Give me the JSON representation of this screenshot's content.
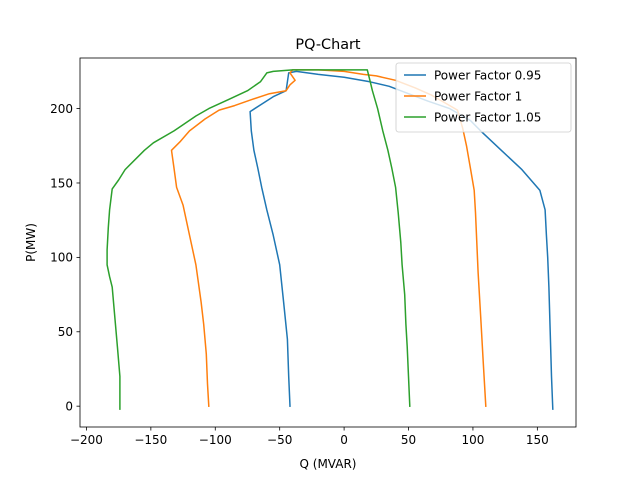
{
  "chart_data": {
    "type": "line",
    "title": "PQ-Chart",
    "xlabel": "Q (MVAR)",
    "ylabel": "P(MW)",
    "xlim": [
      -205,
      180
    ],
    "ylim": [
      -14,
      234
    ],
    "xticks": [
      -200,
      -150,
      -100,
      -50,
      0,
      50,
      100,
      150
    ],
    "yticks": [
      0,
      50,
      100,
      150,
      200
    ],
    "grid": false,
    "legend_position": "top-right",
    "series": [
      {
        "name": "Power Factor 0.95",
        "color": "#1f77b4",
        "points": [
          [
            -42,
            0
          ],
          [
            -43,
            20
          ],
          [
            -44,
            45
          ],
          [
            -47,
            70
          ],
          [
            -50,
            95
          ],
          [
            -55,
            115
          ],
          [
            -60,
            132
          ],
          [
            -64,
            147
          ],
          [
            -67,
            160
          ],
          [
            -70,
            172
          ],
          [
            -72,
            185
          ],
          [
            -73,
            198
          ],
          [
            -64,
            203
          ],
          [
            -55,
            208
          ],
          [
            -45,
            212
          ],
          [
            -44,
            218
          ],
          [
            -43,
            224
          ],
          [
            -37,
            225
          ],
          [
            -20,
            223
          ],
          [
            0,
            221
          ],
          [
            20,
            218
          ],
          [
            35,
            215
          ],
          [
            50,
            210
          ],
          [
            65,
            205
          ],
          [
            82,
            200
          ],
          [
            98,
            192
          ],
          [
            106,
            185
          ],
          [
            122,
            172
          ],
          [
            138,
            159
          ],
          [
            152,
            145
          ],
          [
            156,
            132
          ],
          [
            157,
            115
          ],
          [
            158,
            100
          ],
          [
            159,
            80
          ],
          [
            160,
            50
          ],
          [
            161,
            20
          ],
          [
            162,
            -2
          ]
        ]
      },
      {
        "name": "Power Factor 1",
        "color": "#ff7f0e",
        "points": [
          [
            -105,
            0
          ],
          [
            -106,
            15
          ],
          [
            -107,
            35
          ],
          [
            -109,
            55
          ],
          [
            -111,
            70
          ],
          [
            -115,
            95
          ],
          [
            -120,
            115
          ],
          [
            -125,
            135
          ],
          [
            -130,
            147
          ],
          [
            -132,
            160
          ],
          [
            -134,
            172
          ],
          [
            -127,
            178
          ],
          [
            -120,
            185
          ],
          [
            -108,
            193
          ],
          [
            -97,
            199
          ],
          [
            -85,
            202
          ],
          [
            -72,
            206
          ],
          [
            -58,
            210
          ],
          [
            -45,
            212
          ],
          [
            -42,
            216
          ],
          [
            -38,
            219
          ],
          [
            -42,
            224
          ],
          [
            -40,
            226
          ],
          [
            -20,
            226
          ],
          [
            0,
            225
          ],
          [
            15,
            223
          ],
          [
            25,
            222
          ],
          [
            40,
            219
          ],
          [
            55,
            214
          ],
          [
            68,
            209
          ],
          [
            78,
            204
          ],
          [
            88,
            199
          ],
          [
            92,
            187
          ],
          [
            95,
            175
          ],
          [
            98,
            160
          ],
          [
            101,
            145
          ],
          [
            102,
            130
          ],
          [
            103,
            110
          ],
          [
            104,
            90
          ],
          [
            106,
            60
          ],
          [
            108,
            30
          ],
          [
            110,
            0
          ]
        ]
      },
      {
        "name": "Power Factor 1.05",
        "color": "#2ca02c",
        "points": [
          [
            -174,
            -2
          ],
          [
            -174,
            20
          ],
          [
            -176,
            40
          ],
          [
            -178,
            60
          ],
          [
            -180,
            80
          ],
          [
            -182,
            87
          ],
          [
            -184,
            95
          ],
          [
            -184,
            105
          ],
          [
            -183,
            120
          ],
          [
            -182,
            132
          ],
          [
            -180,
            146
          ],
          [
            -175,
            152
          ],
          [
            -170,
            159
          ],
          [
            -155,
            172
          ],
          [
            -148,
            177
          ],
          [
            -132,
            185
          ],
          [
            -115,
            195
          ],
          [
            -105,
            200
          ],
          [
            -90,
            206
          ],
          [
            -75,
            212
          ],
          [
            -65,
            218
          ],
          [
            -60,
            224
          ],
          [
            -55,
            225
          ],
          [
            -40,
            226
          ],
          [
            -20,
            226
          ],
          [
            0,
            226
          ],
          [
            18,
            226
          ],
          [
            20,
            219
          ],
          [
            22,
            212
          ],
          [
            26,
            200
          ],
          [
            30,
            185
          ],
          [
            34,
            172
          ],
          [
            37,
            160
          ],
          [
            40,
            147
          ],
          [
            42,
            130
          ],
          [
            44,
            110
          ],
          [
            45,
            95
          ],
          [
            47,
            75
          ],
          [
            48,
            55
          ],
          [
            49,
            40
          ],
          [
            50,
            20
          ],
          [
            51,
            0
          ]
        ]
      }
    ]
  }
}
